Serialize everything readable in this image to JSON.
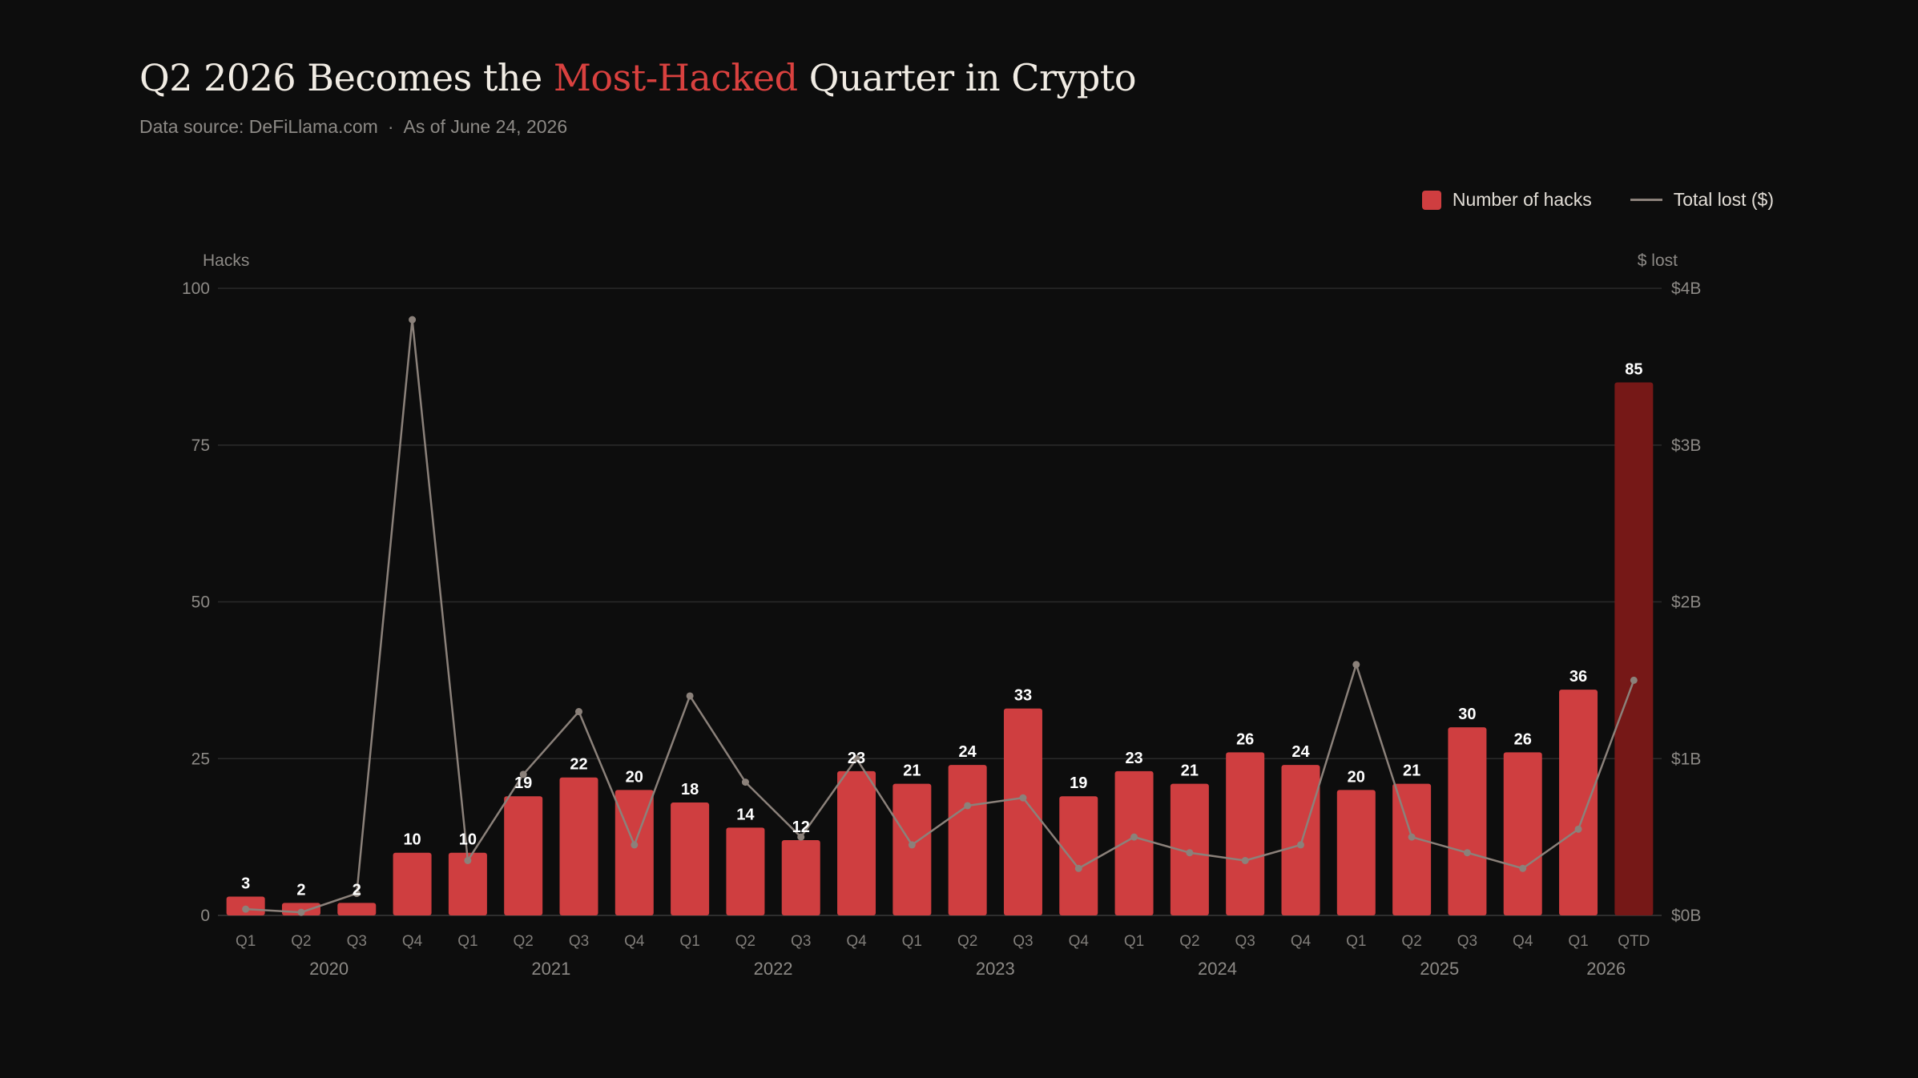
{
  "header": {
    "title_pre": "Q2 2026 Becomes the ",
    "title_accent": "Most-Hacked",
    "title_post": " Quarter in Crypto",
    "source": "Data source: DeFiLlama.com",
    "separator": "·",
    "as_of": "As of June 24, 2026"
  },
  "legend": {
    "hacks": "Number of hacks",
    "lost": "Total lost ($)"
  },
  "colors": {
    "bar": "#cf3e40",
    "bar_highlight": "#761817",
    "line": "#8b817a",
    "grid": "#2a2a2a",
    "accent": "#d9413f"
  },
  "chart_data": {
    "type": "bar",
    "y_left_title": "Hacks",
    "y_right_title": "$ lost",
    "y_left_ticks": [
      "0",
      "25",
      "50",
      "75",
      "100"
    ],
    "y_right_ticks": [
      "$0B",
      "$1B",
      "$2B",
      "$3B",
      "$4B"
    ],
    "ylim_left": [
      0,
      100
    ],
    "ylim_right_billions": [
      0,
      4
    ],
    "grid": true,
    "legend_position": "top-right",
    "categories": [
      "Q1",
      "Q2",
      "Q3",
      "Q4",
      "Q1",
      "Q2",
      "Q3",
      "Q4",
      "Q1",
      "Q2",
      "Q3",
      "Q4",
      "Q1",
      "Q2",
      "Q3",
      "Q4",
      "Q1",
      "Q2",
      "Q3",
      "Q4",
      "Q1",
      "Q2",
      "Q3",
      "Q4",
      "Q1",
      "QTD"
    ],
    "years": [
      {
        "label": "2020",
        "quarters": 4
      },
      {
        "label": "2021",
        "quarters": 4
      },
      {
        "label": "2022",
        "quarters": 4
      },
      {
        "label": "2023",
        "quarters": 4
      },
      {
        "label": "2024",
        "quarters": 4
      },
      {
        "label": "2025",
        "quarters": 4
      },
      {
        "label": "2026",
        "quarters": 2
      }
    ],
    "series": [
      {
        "name": "Number of hacks",
        "type": "bar",
        "values": [
          3,
          2,
          2,
          10,
          10,
          19,
          22,
          20,
          18,
          14,
          12,
          23,
          21,
          24,
          33,
          19,
          23,
          21,
          26,
          24,
          20,
          21,
          30,
          26,
          36,
          85
        ],
        "highlight_last": true
      },
      {
        "name": "Total lost ($)",
        "type": "line",
        "unit": "billions USD",
        "values": [
          0.04,
          0.02,
          0.14,
          3.8,
          0.35,
          0.9,
          1.3,
          0.45,
          1.4,
          0.85,
          0.5,
          1.0,
          0.45,
          0.7,
          0.75,
          0.3,
          0.5,
          0.4,
          0.35,
          0.45,
          1.6,
          0.5,
          0.4,
          0.3,
          0.55,
          1.5
        ]
      }
    ]
  }
}
